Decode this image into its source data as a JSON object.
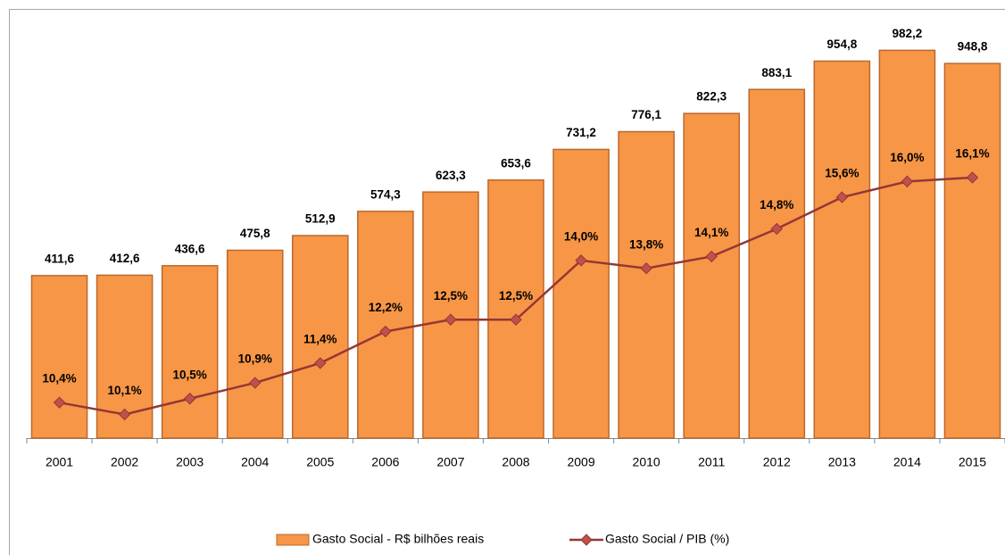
{
  "chart_data": {
    "type": "bar",
    "categories": [
      "2001",
      "2002",
      "2003",
      "2004",
      "2005",
      "2006",
      "2007",
      "2008",
      "2009",
      "2010",
      "2011",
      "2012",
      "2013",
      "2014",
      "2015"
    ],
    "series": [
      {
        "name": "Gasto Social - R$ bilhões reais",
        "type": "bar",
        "color": "#f79646",
        "values": [
          411.6,
          412.6,
          436.6,
          475.8,
          512.9,
          574.3,
          623.3,
          653.6,
          731.2,
          776.1,
          822.3,
          883.1,
          954.8,
          982.2,
          948.8
        ],
        "value_labels": [
          "411,6",
          "412,6",
          "436,6",
          "475,8",
          "512,9",
          "574,3",
          "623,3",
          "653,6",
          "731,2",
          "776,1",
          "822,3",
          "883,1",
          "954,8",
          "982,2",
          "948,8"
        ]
      },
      {
        "name": "Gasto Social / PIB (%)",
        "type": "line",
        "axis": "y2",
        "color": "#953735",
        "values": [
          10.4,
          10.1,
          10.5,
          10.9,
          11.4,
          12.2,
          12.5,
          12.5,
          14.0,
          13.8,
          14.1,
          14.8,
          15.6,
          16.0,
          16.1
        ],
        "value_labels": [
          "10,4%",
          "10,1%",
          "10,5%",
          "10,9%",
          "11,4%",
          "12,2%",
          "12,5%",
          "12,5%",
          "14,0%",
          "13,8%",
          "14,1%",
          "14,8%",
          "15,6%",
          "16,0%",
          "16,1%"
        ]
      }
    ],
    "ylim": [
      0,
      1000
    ],
    "y2lim": [
      9.5,
      19.5
    ],
    "legend": "bottom"
  }
}
